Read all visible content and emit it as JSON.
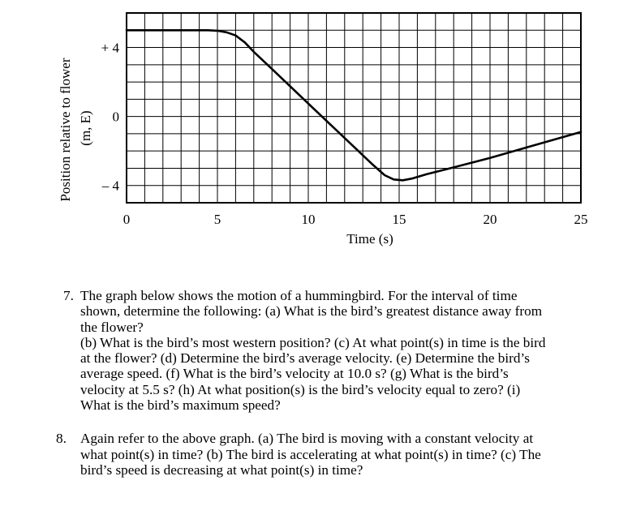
{
  "chart_data": {
    "type": "line",
    "xlabel": "Time (s)",
    "ylabel_line1": "Position relative to flower",
    "ylabel_line2": "(m, E)",
    "xlim": [
      0,
      25
    ],
    "ylim": [
      -5,
      6
    ],
    "grid": true,
    "x_ticks": [
      {
        "value": 0,
        "label": "0"
      },
      {
        "value": 5,
        "label": "5"
      },
      {
        "value": 10,
        "label": "10"
      },
      {
        "value": 15,
        "label": "15"
      },
      {
        "value": 20,
        "label": "20"
      },
      {
        "value": 25,
        "label": "25"
      }
    ],
    "y_ticks": [
      {
        "value": 4,
        "label": "+ 4"
      },
      {
        "value": 0,
        "label": "0"
      },
      {
        "value": -4,
        "label": "– 4"
      }
    ],
    "series": [
      {
        "points": [
          [
            0,
            5
          ],
          [
            4.5,
            5
          ],
          [
            5.0,
            4.97
          ],
          [
            5.5,
            4.88
          ],
          [
            6.0,
            4.7
          ],
          [
            6.5,
            4.3
          ],
          [
            7,
            3.75
          ],
          [
            8,
            2.75
          ],
          [
            10,
            0.75
          ],
          [
            12,
            -1.25
          ],
          [
            13.5,
            -2.75
          ],
          [
            14.2,
            -3.4
          ],
          [
            14.7,
            -3.65
          ],
          [
            15.2,
            -3.7
          ],
          [
            15.7,
            -3.6
          ],
          [
            16.5,
            -3.35
          ],
          [
            18,
            -2.95
          ],
          [
            20,
            -2.4
          ],
          [
            22,
            -1.8
          ],
          [
            25,
            -0.9
          ]
        ]
      }
    ]
  },
  "questions": [
    {
      "number": "7.",
      "lines": [
        "The graph below shows the motion of a hummingbird.  For the interval of time",
        "shown, determine the following:  (a) What is the bird’s greatest distance away from",
        "the flower?",
        "(b) What is the bird’s most western position?  (c) At what point(s) in time is the bird",
        "at the flower?  (d) Determine the bird’s average velocity.  (e) Determine the bird’s",
        "average speed.  (f) What is the bird’s velocity at 10.0 s?  (g) What is the bird’s",
        "velocity at 5.5 s?  (h) At what position(s) is the bird’s velocity equal to zero?  (i)",
        "What is the bird’s maximum speed?"
      ]
    },
    {
      "number": "8.",
      "lines": [
        "Again refer to the above graph.  (a) The bird is moving with a constant velocity at",
        "what point(s) in time?  (b) The bird is accelerating at what point(s) in time?  (c) The",
        "bird’s speed is decreasing at what point(s) in time?"
      ]
    }
  ]
}
